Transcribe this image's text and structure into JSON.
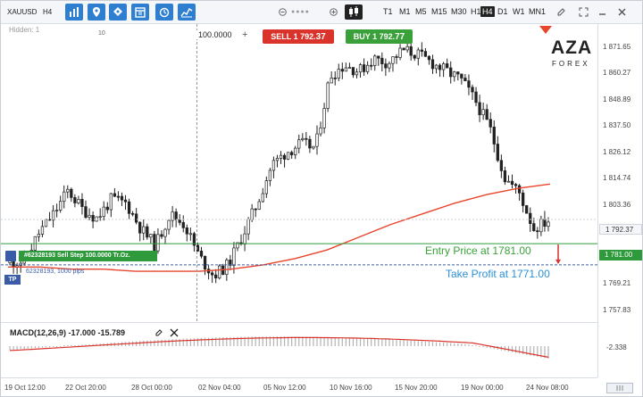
{
  "toolbar": {
    "symbol": "XAUUSD",
    "period": "H4",
    "timeframes": [
      "T1",
      "M1",
      "M5",
      "M15",
      "M30",
      "H1",
      "H4",
      "D1",
      "W1",
      "MN1"
    ],
    "active_timeframe": "H4",
    "icons": [
      "bar-chart-icon",
      "pin-icon",
      "tag-icon",
      "calendar-icon",
      "alarm-icon",
      "indicators-icon"
    ]
  },
  "chart": {
    "hidden_label": "Hidden: 1",
    "ten_label": "10",
    "lot_value": "100.0000",
    "sell_label": "SELL 1 792.",
    "sell_tail": "37",
    "buy_label": "BUY 1 792.",
    "buy_tail": "77",
    "order_label": "#62328193 Sell Step 100.0000 Tr.Oz.",
    "tp_tag": "TP",
    "tp_text": "62328193, 1000 pips",
    "entry_text": "Entry Price at 1781.00",
    "take_profit_text": "Take Profit at 1771.00",
    "logo_top": "AZA",
    "logo_bottom": "FOREX"
  },
  "price_axis": {
    "labels": [
      "1 871.65",
      "1 860.27",
      "1 848.89",
      "1 837.50",
      "1 826.12",
      "1 814.74",
      "1 803.36",
      "1 769.21",
      "1 757.83"
    ],
    "current_price": "1 792.37",
    "entry_price": "1 781.00",
    "macd_value": "-2.338"
  },
  "time_axis": {
    "labels": [
      "19 Oct 12:00",
      "22 Oct 20:00",
      "28 Oct 00:00",
      "02 Nov 04:00",
      "05 Nov 12:00",
      "10 Nov 16:00",
      "15 Nov 20:00",
      "19 Nov 00:00",
      "24 Nov 08:00"
    ]
  },
  "macd": {
    "label": "MACD(12,26,9) -17.000 -15.789"
  },
  "colors": {
    "accent": "#2f7fd1",
    "sell": "#d9332b",
    "buy": "#3aa13a",
    "ma": "#e8452c",
    "tp": "#3a5ca8"
  },
  "chart_data": {
    "type": "candlestick",
    "instrument": "XAUUSD",
    "timeframe": "H4",
    "x_range": [
      "19 Oct 12:00",
      "24 Nov 08:00"
    ],
    "y_range": [
      1750,
      1880
    ],
    "approx_closes": [
      1772,
      1773,
      1786,
      1795,
      1806,
      1797,
      1793,
      1802,
      1800,
      1788,
      1780,
      1795,
      1790,
      1775,
      1766,
      1771,
      1785,
      1800,
      1818,
      1824,
      1828,
      1826,
      1860,
      1865,
      1862,
      1868,
      1866,
      1872,
      1870,
      1866,
      1862,
      1858,
      1848,
      1835,
      1812,
      1805,
      1788,
      1792
    ],
    "moving_average": [
      1770,
      1770,
      1769,
      1769,
      1768,
      1768,
      1768,
      1769,
      1771,
      1774,
      1778,
      1784,
      1790,
      1795,
      1800,
      1804,
      1807,
      1809
    ],
    "entry_price": 1781.0,
    "take_profit": 1771.0,
    "current_price": 1792.37
  }
}
